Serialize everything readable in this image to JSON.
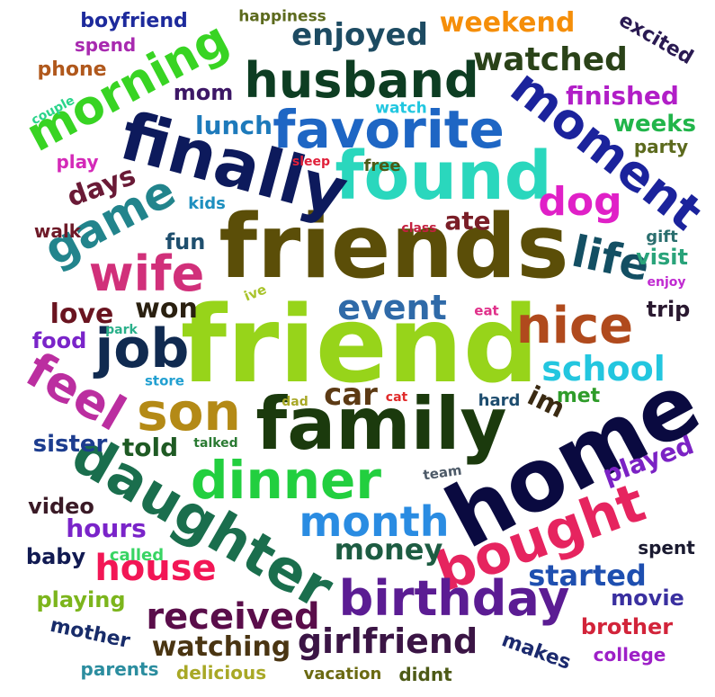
{
  "words": {
    "friend": {
      "text": "friend",
      "color": "#97d41a"
    },
    "friends": {
      "text": "friends",
      "color": "#5b4e08"
    },
    "family": {
      "text": "family",
      "color": "#1b3a0d"
    },
    "home": {
      "text": "home",
      "color": "#0a0a40"
    },
    "found": {
      "text": "found",
      "color": "#2ad7bd"
    },
    "finally": {
      "text": "finally",
      "color": "#0d1a5c"
    },
    "daughter": {
      "text": "daughter",
      "color": "#1a6e4d"
    },
    "dinner": {
      "text": "dinner",
      "color": "#22cf3f"
    },
    "husband": {
      "text": "husband",
      "color": "#0d3d22"
    },
    "favorite": {
      "text": "favorite",
      "color": "#1e66c4"
    },
    "morning": {
      "text": "morning",
      "color": "#38d423"
    },
    "bought": {
      "text": "bought",
      "color": "#e6245f"
    },
    "birthday": {
      "text": "birthday",
      "color": "#5b1c93"
    },
    "month": {
      "text": "month",
      "color": "#2a8ce2"
    },
    "moment": {
      "text": "moment",
      "color": "#1b239c"
    },
    "son": {
      "text": "son",
      "color": "#b48a16"
    },
    "job": {
      "text": "job",
      "color": "#102a50"
    },
    "nice": {
      "text": "nice",
      "color": "#b04a1d"
    },
    "game": {
      "text": "game",
      "color": "#22848c"
    },
    "wife": {
      "text": "wife",
      "color": "#d1307a"
    },
    "feel": {
      "text": "feel",
      "color": "#bb2ea0"
    },
    "life": {
      "text": "life",
      "color": "#134f63"
    },
    "house": {
      "text": "house",
      "color": "#f21655"
    },
    "received": {
      "text": "received",
      "color": "#5a0d4a"
    },
    "girlfriend": {
      "text": "girlfriend",
      "color": "#3b1545"
    },
    "school": {
      "text": "school",
      "color": "#23c6df"
    },
    "event": {
      "text": "event",
      "color": "#2f6aa8"
    },
    "watched": {
      "text": "watched",
      "color": "#2a4218"
    },
    "enjoyed": {
      "text": "enjoyed",
      "color": "#1d4b62"
    },
    "weekend": {
      "text": "weekend",
      "color": "#f58e09"
    },
    "dog": {
      "text": "dog",
      "color": "#e020c7"
    },
    "car": {
      "text": "car",
      "color": "#5c3a14"
    },
    "won": {
      "text": "won",
      "color": "#2a2010"
    },
    "love": {
      "text": "love",
      "color": "#6a1420"
    },
    "watching": {
      "text": "watching",
      "color": "#4a3512"
    },
    "money": {
      "text": "money",
      "color": "#1d5c42"
    },
    "started": {
      "text": "started",
      "color": "#1e4fb0"
    },
    "days": {
      "text": "days",
      "color": "#6a1a36"
    },
    "lunch": {
      "text": "lunch",
      "color": "#1d7abb"
    },
    "finished": {
      "text": "finished",
      "color": "#b11ec7"
    },
    "hours": {
      "text": "hours",
      "color": "#7a24c9"
    },
    "sister": {
      "text": "sister",
      "color": "#1d3d8f"
    },
    "told": {
      "text": "told",
      "color": "#1f5a24"
    },
    "played": {
      "text": "played",
      "color": "#7b22c4"
    },
    "im": {
      "text": "im",
      "color": "#3a2a12"
    },
    "fun": {
      "text": "fun",
      "color": "#1f4f6e"
    },
    "ate": {
      "text": "ate",
      "color": "#7a1e27"
    },
    "mom": {
      "text": "mom",
      "color": "#3d1766"
    },
    "weeks": {
      "text": "weeks",
      "color": "#21b54a"
    },
    "visit": {
      "text": "visit",
      "color": "#29a37a"
    },
    "trip": {
      "text": "trip",
      "color": "#2a1930"
    },
    "party": {
      "text": "party",
      "color": "#5c6a1d"
    },
    "movie": {
      "text": "movie",
      "color": "#3a30a0"
    },
    "brother": {
      "text": "brother",
      "color": "#d2243a"
    },
    "college": {
      "text": "college",
      "color": "#9d20c7"
    },
    "makes": {
      "text": "makes",
      "color": "#1c2a6e"
    },
    "didnt": {
      "text": "didnt",
      "color": "#4d5a17"
    },
    "vacation": {
      "text": "vacation",
      "color": "#6b6a12"
    },
    "delicious": {
      "text": "delicious",
      "color": "#a8a826"
    },
    "parents": {
      "text": "parents",
      "color": "#2b8d9f"
    },
    "mother": {
      "text": "mother",
      "color": "#182c6a"
    },
    "playing": {
      "text": "playing",
      "color": "#7cb51c"
    },
    "baby": {
      "text": "baby",
      "color": "#111a52"
    },
    "video": {
      "text": "video",
      "color": "#3a1a26"
    },
    "called": {
      "text": "called",
      "color": "#38d463"
    },
    "spent": {
      "text": "spent",
      "color": "#1a1a30"
    },
    "food": {
      "text": "food",
      "color": "#7a24c9"
    },
    "met": {
      "text": "met",
      "color": "#2f9c2a"
    },
    "hard": {
      "text": "hard",
      "color": "#1d4c6e"
    },
    "dad": {
      "text": "dad",
      "color": "#a8a826"
    },
    "cat": {
      "text": "cat",
      "color": "#e02a2a"
    },
    "talked": {
      "text": "talked",
      "color": "#2a7a32"
    },
    "team": {
      "text": "team",
      "color": "#4d5a68"
    },
    "store": {
      "text": "store",
      "color": "#22a0d1"
    },
    "park": {
      "text": "park",
      "color": "#2ab08a"
    },
    "ive": {
      "text": "ive",
      "color": "#a8c32a"
    },
    "eat": {
      "text": "eat",
      "color": "#e0308a"
    },
    "enjoy": {
      "text": "enjoy",
      "color": "#c02ad1"
    },
    "gift": {
      "text": "gift",
      "color": "#2a6e6e"
    },
    "class": {
      "text": "class",
      "color": "#c42040"
    },
    "free": {
      "text": "free",
      "color": "#4d5a17"
    },
    "sleep": {
      "text": "sleep",
      "color": "#e0203a"
    },
    "kids": {
      "text": "kids",
      "color": "#1d8fbf"
    },
    "walk": {
      "text": "walk",
      "color": "#6e1a28"
    },
    "play": {
      "text": "play",
      "color": "#d42ab8"
    },
    "couple": {
      "text": "couple",
      "color": "#2ad48a"
    },
    "phone": {
      "text": "phone",
      "color": "#b0581c"
    },
    "spend": {
      "text": "spend",
      "color": "#a82ab0"
    },
    "boyfriend": {
      "text": "boyfriend",
      "color": "#1d2a9c"
    },
    "happiness": {
      "text": "happiness",
      "color": "#5c6a1d"
    },
    "watch": {
      "text": "watch",
      "color": "#22c7e0"
    },
    "excited": {
      "text": "excited",
      "color": "#2a1a52"
    }
  }
}
